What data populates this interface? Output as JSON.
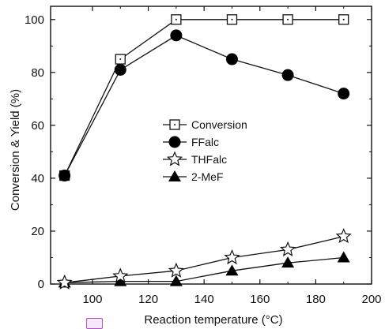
{
  "chart_data": {
    "type": "line",
    "xlabel": "Reaction temperature (°C)",
    "ylabel": "Conversion & Yield (%)",
    "xlim": [
      85,
      200
    ],
    "ylim": [
      0,
      105
    ],
    "xticks": [
      100,
      120,
      140,
      160,
      180,
      200
    ],
    "yticks": [
      0,
      20,
      40,
      60,
      80,
      100
    ],
    "legend_position": "center",
    "x": [
      90,
      110,
      130,
      150,
      170,
      190
    ],
    "series": [
      {
        "name": "Conversion",
        "marker": "square-open-dot",
        "values": [
          41,
          85,
          100,
          100,
          100,
          100
        ]
      },
      {
        "name": "FFalc",
        "marker": "circle-filled",
        "values": [
          41,
          81,
          94,
          85,
          79,
          72
        ]
      },
      {
        "name": "THFalc",
        "marker": "star-open",
        "values": [
          0.5,
          3,
          5,
          10,
          13,
          18
        ]
      },
      {
        "name": "2-MeF",
        "marker": "triangle-filled",
        "values": [
          0.5,
          1,
          1,
          5,
          8,
          10
        ]
      }
    ]
  }
}
